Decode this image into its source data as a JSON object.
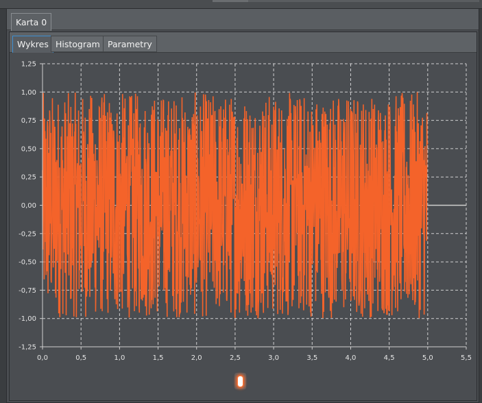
{
  "outer_tabs": [
    {
      "label": "Karta 0"
    }
  ],
  "inner_tabs": [
    {
      "label": "Wykres"
    },
    {
      "label": "Histogram"
    },
    {
      "label": "Parametry"
    }
  ],
  "colors": {
    "series": "#f4632a",
    "background": "#4a4d51",
    "grid": "#e8e8e8",
    "flat_line": "#cfcfcf"
  },
  "chart_data": {
    "type": "line",
    "title": "",
    "xlabel": "",
    "ylabel": "",
    "xlim": [
      0.0,
      5.5
    ],
    "ylim": [
      -1.25,
      1.25
    ],
    "x_ticks": [
      "0,0",
      "0,5",
      "1,0",
      "1,5",
      "2,0",
      "2,5",
      "3,0",
      "3,5",
      "4,0",
      "4,5",
      "5,0",
      "5,5"
    ],
    "y_ticks": [
      "1,25",
      "1,00",
      "0,75",
      "0,50",
      "0,25",
      "0,00",
      "-0,25",
      "-0,50",
      "-0,75",
      "-1,00",
      "-1,25"
    ],
    "grid": true,
    "series": [
      {
        "signal": "random noise, uniform amplitude",
        "x_range": [
          0.0,
          5.0
        ],
        "y_range": [
          -1.0,
          1.0
        ],
        "after_end_value": 0.0,
        "after_end_x_range": [
          5.0,
          5.5
        ]
      }
    ]
  }
}
